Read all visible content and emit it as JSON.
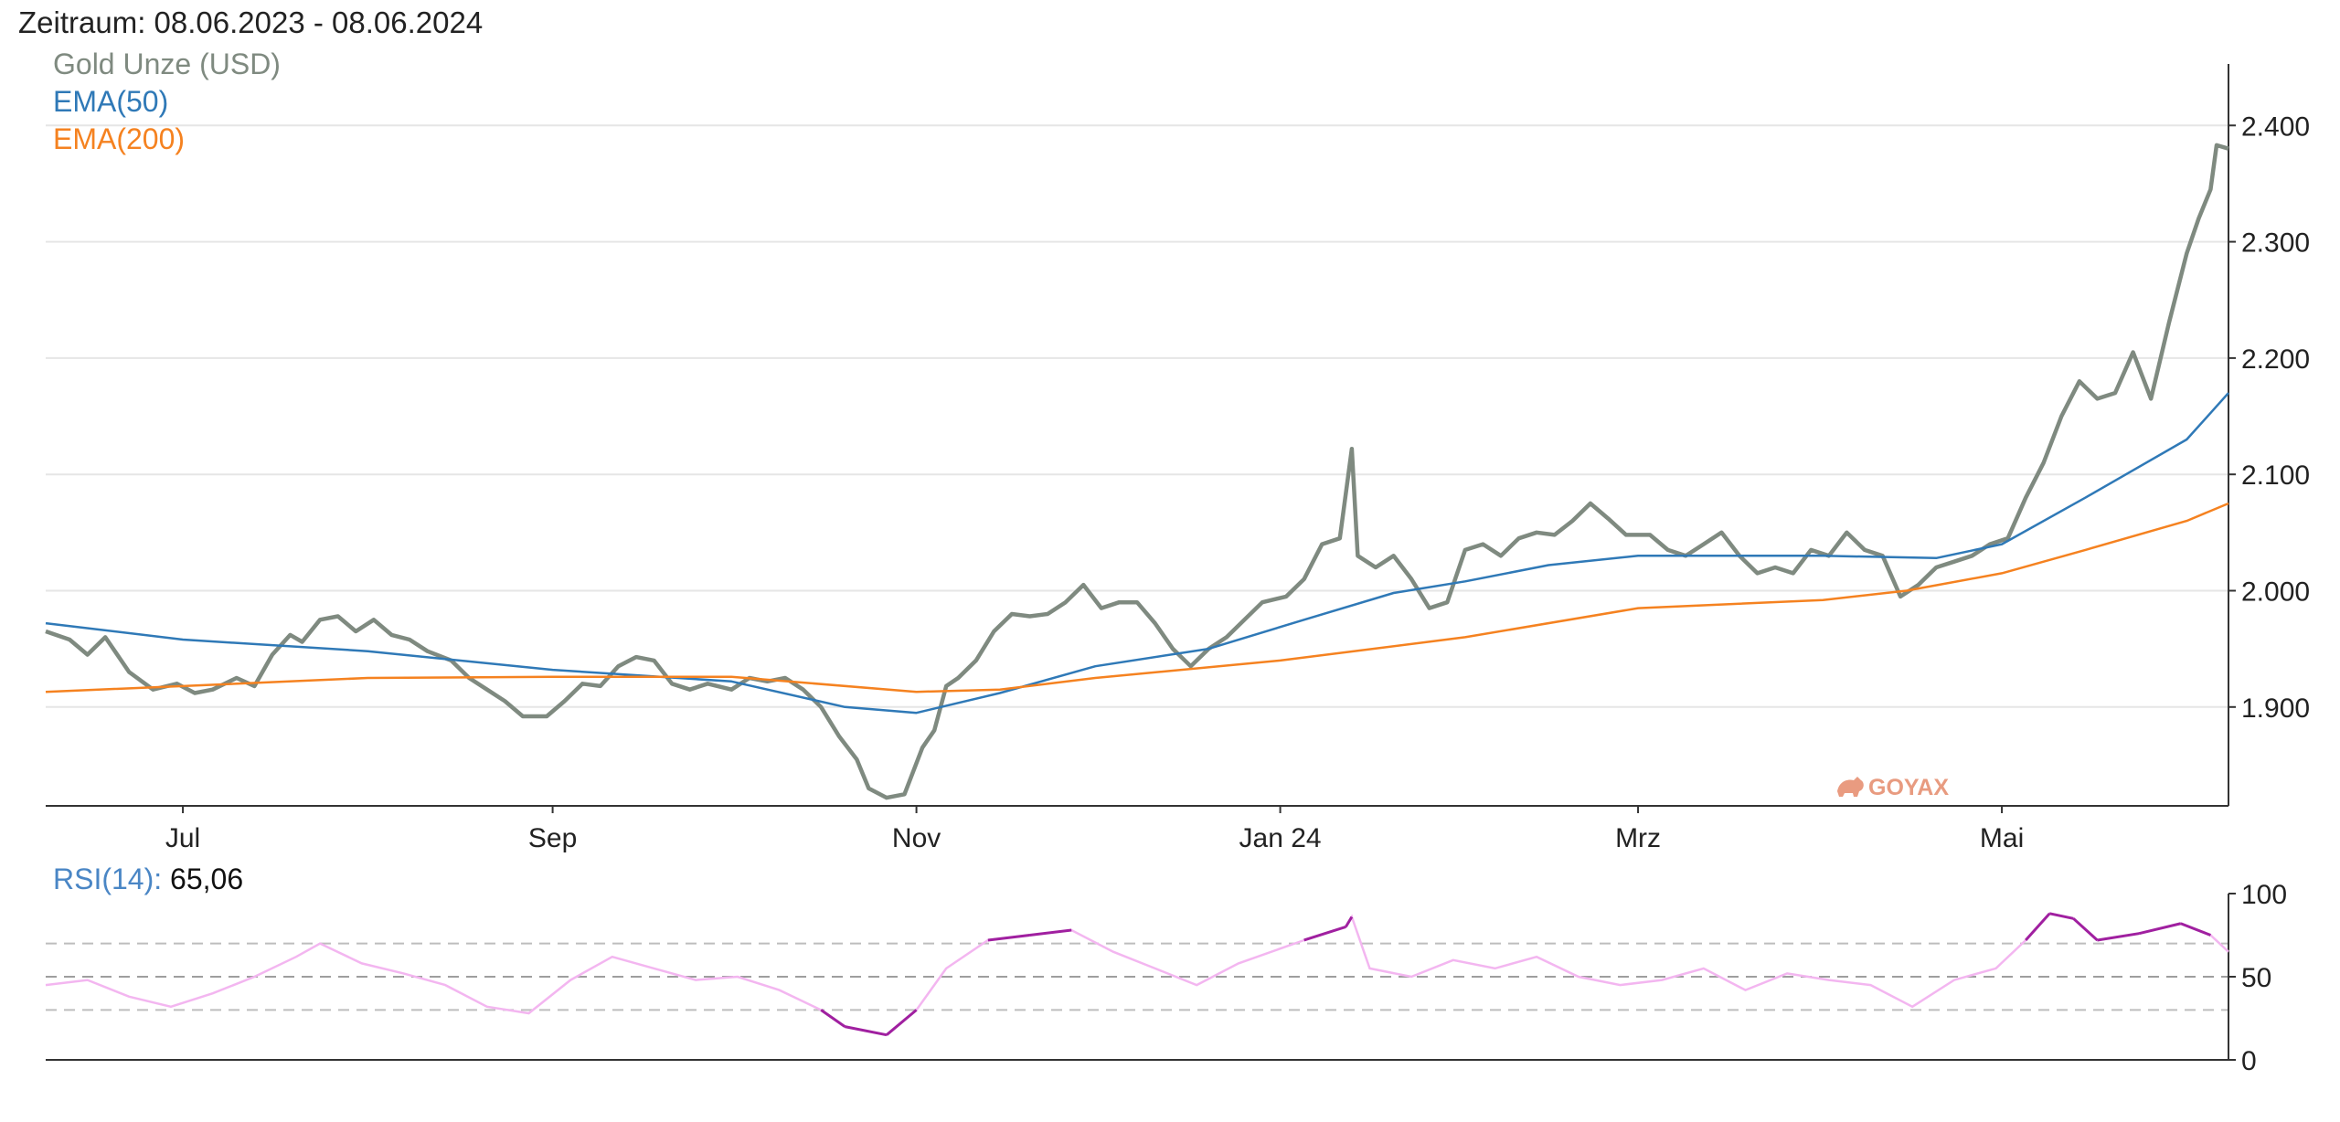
{
  "header": {
    "period_text": "Zeitraum: 08.06.2023 - 08.06.2024"
  },
  "legend": {
    "gold": "Gold Unze (USD)",
    "ema50": "EMA(50)",
    "ema200": "EMA(200)"
  },
  "rsi": {
    "label": "RSI(14):",
    "value": "65,06"
  },
  "watermark": "GOYAX",
  "colors": {
    "gold": "#7f8a80",
    "ema50": "#2f79b7",
    "ema200": "#f58220",
    "rsi_dim": "#f3b6f0",
    "rsi_strong": "#a020a0",
    "grid": "#e6e6e6",
    "axis": "#333333",
    "rsi_ref": "#bdbdbd",
    "watermark": "#e58a6a"
  },
  "chart_data": [
    {
      "type": "line",
      "title": "",
      "x_unit": "day",
      "x_range": [
        "2023-06-08",
        "2024-06-08"
      ],
      "ylim": [
        1815,
        2445
      ],
      "y_ticks": [
        {
          "value": 1900,
          "label": "1.900"
        },
        {
          "value": 2000,
          "label": "2.000"
        },
        {
          "value": 2100,
          "label": "2.100"
        },
        {
          "value": 2200,
          "label": "2.200"
        },
        {
          "value": 2300,
          "label": "2.300"
        },
        {
          "value": 2400,
          "label": "2.400"
        }
      ],
      "x_ticks": [
        {
          "date": "2023-07-01",
          "label": "Jul"
        },
        {
          "date": "2023-09-01",
          "label": "Sep"
        },
        {
          "date": "2023-11-01",
          "label": "Nov"
        },
        {
          "date": "2024-01-01",
          "label": "Jan 24"
        },
        {
          "date": "2024-03-01",
          "label": "Mrz"
        },
        {
          "date": "2024-05-01",
          "label": "Mai"
        }
      ],
      "grid": "horizontal",
      "legend_position": "top-left",
      "series": [
        {
          "name": "Gold Unze (USD)",
          "color": "#7f8a80",
          "points": [
            [
              "2023-06-08",
              1965
            ],
            [
              "2023-06-12",
              1958
            ],
            [
              "2023-06-15",
              1945
            ],
            [
              "2023-06-18",
              1960
            ],
            [
              "2023-06-22",
              1930
            ],
            [
              "2023-06-26",
              1915
            ],
            [
              "2023-06-30",
              1920
            ],
            [
              "2023-07-03",
              1912
            ],
            [
              "2023-07-06",
              1915
            ],
            [
              "2023-07-10",
              1925
            ],
            [
              "2023-07-13",
              1918
            ],
            [
              "2023-07-16",
              1945
            ],
            [
              "2023-07-19",
              1962
            ],
            [
              "2023-07-21",
              1956
            ],
            [
              "2023-07-24",
              1975
            ],
            [
              "2023-07-27",
              1978
            ],
            [
              "2023-07-30",
              1965
            ],
            [
              "2023-08-02",
              1975
            ],
            [
              "2023-08-05",
              1962
            ],
            [
              "2023-08-08",
              1958
            ],
            [
              "2023-08-11",
              1948
            ],
            [
              "2023-08-15",
              1940
            ],
            [
              "2023-08-18",
              1925
            ],
            [
              "2023-08-21",
              1915
            ],
            [
              "2023-08-24",
              1905
            ],
            [
              "2023-08-27",
              1892
            ],
            [
              "2023-08-31",
              1892
            ],
            [
              "2023-09-03",
              1905
            ],
            [
              "2023-09-06",
              1920
            ],
            [
              "2023-09-09",
              1918
            ],
            [
              "2023-09-12",
              1935
            ],
            [
              "2023-09-15",
              1943
            ],
            [
              "2023-09-18",
              1940
            ],
            [
              "2023-09-21",
              1920
            ],
            [
              "2023-09-24",
              1915
            ],
            [
              "2023-09-27",
              1920
            ],
            [
              "2023-10-01",
              1915
            ],
            [
              "2023-10-04",
              1925
            ],
            [
              "2023-10-07",
              1922
            ],
            [
              "2023-10-10",
              1925
            ],
            [
              "2023-10-13",
              1915
            ],
            [
              "2023-10-16",
              1900
            ],
            [
              "2023-10-19",
              1875
            ],
            [
              "2023-10-22",
              1855
            ],
            [
              "2023-10-24",
              1830
            ],
            [
              "2023-10-27",
              1822
            ],
            [
              "2023-10-30",
              1825
            ],
            [
              "2023-11-02",
              1865
            ],
            [
              "2023-11-04",
              1880
            ],
            [
              "2023-11-06",
              1918
            ],
            [
              "2023-11-08",
              1925
            ],
            [
              "2023-11-11",
              1940
            ],
            [
              "2023-11-14",
              1965
            ],
            [
              "2023-11-17",
              1980
            ],
            [
              "2023-11-20",
              1978
            ],
            [
              "2023-11-23",
              1980
            ],
            [
              "2023-11-26",
              1990
            ],
            [
              "2023-11-29",
              2005
            ],
            [
              "2023-12-02",
              1985
            ],
            [
              "2023-12-05",
              1990
            ],
            [
              "2023-12-08",
              1990
            ],
            [
              "2023-12-11",
              1972
            ],
            [
              "2023-12-14",
              1950
            ],
            [
              "2023-12-17",
              1935
            ],
            [
              "2023-12-20",
              1950
            ],
            [
              "2023-12-23",
              1960
            ],
            [
              "2023-12-26",
              1975
            ],
            [
              "2023-12-29",
              1990
            ],
            [
              "2024-01-02",
              1995
            ],
            [
              "2024-01-05",
              2010
            ],
            [
              "2024-01-08",
              2040
            ],
            [
              "2024-01-11",
              2045
            ],
            [
              "2024-01-13",
              2122
            ],
            [
              "2024-01-14",
              2030
            ],
            [
              "2024-01-17",
              2020
            ],
            [
              "2024-01-20",
              2030
            ],
            [
              "2024-01-23",
              2010
            ],
            [
              "2024-01-26",
              1985
            ],
            [
              "2024-01-29",
              1990
            ],
            [
              "2024-02-01",
              2035
            ],
            [
              "2024-02-04",
              2040
            ],
            [
              "2024-02-07",
              2030
            ],
            [
              "2024-02-10",
              2045
            ],
            [
              "2024-02-13",
              2050
            ],
            [
              "2024-02-16",
              2048
            ],
            [
              "2024-02-19",
              2060
            ],
            [
              "2024-02-22",
              2075
            ],
            [
              "2024-02-25",
              2062
            ],
            [
              "2024-02-28",
              2048
            ],
            [
              "2024-03-03",
              2048
            ],
            [
              "2024-03-06",
              2035
            ],
            [
              "2024-03-09",
              2030
            ],
            [
              "2024-03-12",
              2040
            ],
            [
              "2024-03-15",
              2050
            ],
            [
              "2024-03-18",
              2030
            ],
            [
              "2024-03-21",
              2015
            ],
            [
              "2024-03-24",
              2020
            ],
            [
              "2024-03-27",
              2015
            ],
            [
              "2024-03-30",
              2035
            ],
            [
              "2024-04-02",
              2030
            ],
            [
              "2024-04-05",
              2050
            ],
            [
              "2024-04-08",
              2035
            ],
            [
              "2024-04-11",
              2030
            ],
            [
              "2024-04-14",
              1995
            ],
            [
              "2024-04-17",
              2005
            ],
            [
              "2024-04-20",
              2020
            ],
            [
              "2024-04-23",
              2025
            ],
            [
              "2024-04-26",
              2030
            ],
            [
              "2024-04-29",
              2040
            ],
            [
              "2024-05-02",
              2045
            ],
            [
              "2024-05-05",
              2080
            ],
            [
              "2024-05-08",
              2110
            ],
            [
              "2024-05-11",
              2150
            ],
            [
              "2024-05-14",
              2180
            ],
            [
              "2024-05-17",
              2165
            ],
            [
              "2024-05-20",
              2170
            ],
            [
              "2024-05-23",
              2205
            ],
            [
              "2024-05-26",
              2165
            ],
            [
              "2024-05-29",
              2230
            ],
            [
              "2024-06-01",
              2290
            ],
            [
              "2024-06-03",
              2320
            ],
            [
              "2024-06-05",
              2345
            ],
            [
              "2024-06-06",
              2383
            ],
            [
              "2024-06-08",
              2380
            ]
          ]
        },
        {
          "name": "EMA(50)",
          "color": "#2f79b7",
          "points": [
            [
              "2023-06-08",
              1972
            ],
            [
              "2023-07-01",
              1958
            ],
            [
              "2023-08-01",
              1948
            ],
            [
              "2023-09-01",
              1932
            ],
            [
              "2023-10-01",
              1922
            ],
            [
              "2023-10-20",
              1900
            ],
            [
              "2023-11-01",
              1895
            ],
            [
              "2023-11-15",
              1912
            ],
            [
              "2023-12-01",
              1935
            ],
            [
              "2023-12-20",
              1950
            ],
            [
              "2024-01-05",
              1975
            ],
            [
              "2024-01-20",
              1998
            ],
            [
              "2024-02-01",
              2008
            ],
            [
              "2024-02-15",
              2022
            ],
            [
              "2024-03-01",
              2030
            ],
            [
              "2024-04-01",
              2030
            ],
            [
              "2024-04-20",
              2028
            ],
            [
              "2024-05-01",
              2040
            ],
            [
              "2024-05-15",
              2080
            ],
            [
              "2024-06-01",
              2130
            ],
            [
              "2024-06-08",
              2170
            ]
          ]
        },
        {
          "name": "EMA(200)",
          "color": "#f58220",
          "points": [
            [
              "2023-06-08",
              1913
            ],
            [
              "2023-07-01",
              1918
            ],
            [
              "2023-08-01",
              1925
            ],
            [
              "2023-09-01",
              1926
            ],
            [
              "2023-10-01",
              1926
            ],
            [
              "2023-11-01",
              1913
            ],
            [
              "2023-11-15",
              1915
            ],
            [
              "2023-12-01",
              1925
            ],
            [
              "2024-01-01",
              1940
            ],
            [
              "2024-02-01",
              1960
            ],
            [
              "2024-03-01",
              1985
            ],
            [
              "2024-04-01",
              1992
            ],
            [
              "2024-04-15",
              2000
            ],
            [
              "2024-05-01",
              2015
            ],
            [
              "2024-05-15",
              2035
            ],
            [
              "2024-06-01",
              2060
            ],
            [
              "2024-06-08",
              2075
            ]
          ]
        }
      ]
    },
    {
      "type": "line",
      "title": "RSI(14): 65,06",
      "x_range": [
        "2023-06-08",
        "2024-06-08"
      ],
      "ylim": [
        0,
        100
      ],
      "y_ticks": [
        {
          "value": 0,
          "label": "0"
        },
        {
          "value": 50,
          "label": "50"
        },
        {
          "value": 100,
          "label": "100"
        }
      ],
      "reference_lines": [
        30,
        50,
        70
      ],
      "series": [
        {
          "name": "RSI(14)",
          "points": [
            [
              "2023-06-08",
              45
            ],
            [
              "2023-06-15",
              48
            ],
            [
              "2023-06-22",
              38
            ],
            [
              "2023-06-29",
              32
            ],
            [
              "2023-07-06",
              40
            ],
            [
              "2023-07-13",
              50
            ],
            [
              "2023-07-20",
              62
            ],
            [
              "2023-07-24",
              70
            ],
            [
              "2023-07-31",
              58
            ],
            [
              "2023-08-07",
              52
            ],
            [
              "2023-08-14",
              45
            ],
            [
              "2023-08-21",
              32
            ],
            [
              "2023-08-28",
              28
            ],
            [
              "2023-09-04",
              48
            ],
            [
              "2023-09-11",
              62
            ],
            [
              "2023-09-18",
              55
            ],
            [
              "2023-09-25",
              48
            ],
            [
              "2023-10-02",
              50
            ],
            [
              "2023-10-09",
              42
            ],
            [
              "2023-10-16",
              30
            ],
            [
              "2023-10-20",
              20
            ],
            [
              "2023-10-27",
              15
            ],
            [
              "2023-11-01",
              30
            ],
            [
              "2023-11-06",
              55
            ],
            [
              "2023-11-13",
              72
            ],
            [
              "2023-11-20",
              75
            ],
            [
              "2023-11-27",
              78
            ],
            [
              "2023-12-04",
              65
            ],
            [
              "2023-12-11",
              55
            ],
            [
              "2023-12-18",
              45
            ],
            [
              "2023-12-25",
              58
            ],
            [
              "2024-01-05",
              72
            ],
            [
              "2024-01-12",
              80
            ],
            [
              "2024-01-13",
              86
            ],
            [
              "2024-01-16",
              55
            ],
            [
              "2024-01-23",
              50
            ],
            [
              "2024-01-30",
              60
            ],
            [
              "2024-02-06",
              55
            ],
            [
              "2024-02-13",
              62
            ],
            [
              "2024-02-20",
              50
            ],
            [
              "2024-02-27",
              45
            ],
            [
              "2024-03-05",
              48
            ],
            [
              "2024-03-12",
              55
            ],
            [
              "2024-03-19",
              42
            ],
            [
              "2024-03-26",
              52
            ],
            [
              "2024-04-02",
              48
            ],
            [
              "2024-04-09",
              45
            ],
            [
              "2024-04-16",
              32
            ],
            [
              "2024-04-23",
              48
            ],
            [
              "2024-04-30",
              55
            ],
            [
              "2024-05-05",
              72
            ],
            [
              "2024-05-09",
              88
            ],
            [
              "2024-05-13",
              85
            ],
            [
              "2024-05-17",
              72
            ],
            [
              "2024-05-24",
              76
            ],
            [
              "2024-05-31",
              82
            ],
            [
              "2024-06-05",
              75
            ],
            [
              "2024-06-08",
              65
            ]
          ]
        }
      ]
    }
  ]
}
